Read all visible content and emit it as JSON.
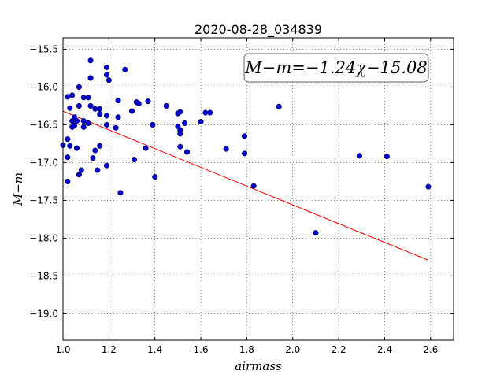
{
  "chart_data": {
    "type": "scatter",
    "title": "2020-08-28_034839",
    "xlabel": "airmass",
    "ylabel": "M−m",
    "xlim": [
      1.0,
      2.7
    ],
    "ylim": [
      -19.35,
      -15.35
    ],
    "y_inverted": false,
    "grid": true,
    "x_ticks": [
      1.0,
      1.2,
      1.4,
      1.6,
      1.8,
      2.0,
      2.2,
      2.4,
      2.6
    ],
    "x_tick_labels": [
      "1.0",
      "1.2",
      "1.4",
      "1.6",
      "1.8",
      "2.0",
      "2.2",
      "2.4",
      "2.6"
    ],
    "y_ticks": [
      -15.5,
      -16.0,
      -16.5,
      -17.0,
      -17.5,
      -18.0,
      -18.5,
      -19.0
    ],
    "y_tick_labels": [
      "−15.5",
      "−16.0",
      "−16.5",
      "−17.0",
      "−17.5",
      "−18.0",
      "−18.5",
      "−19.0"
    ],
    "annotation": "M−m=−1.24χ−15.08",
    "fit": {
      "slope": -1.24,
      "intercept": -15.08,
      "x_range": [
        1.0,
        2.59
      ],
      "color": "#ff0000"
    },
    "point_color": "#0000cc",
    "points": [
      [
        1.12,
        -15.65
      ],
      [
        1.19,
        -15.74
      ],
      [
        1.27,
        -15.77
      ],
      [
        1.19,
        -15.84
      ],
      [
        1.2,
        -15.91
      ],
      [
        1.12,
        -15.88
      ],
      [
        1.07,
        -16.0
      ],
      [
        1.02,
        -16.13
      ],
      [
        1.04,
        -16.11
      ],
      [
        1.09,
        -16.14
      ],
      [
        1.11,
        -16.14
      ],
      [
        1.24,
        -16.18
      ],
      [
        1.32,
        -16.2
      ],
      [
        1.33,
        -16.22
      ],
      [
        1.37,
        -16.19
      ],
      [
        1.07,
        -16.25
      ],
      [
        1.12,
        -16.25
      ],
      [
        1.14,
        -16.29
      ],
      [
        1.16,
        -16.29
      ],
      [
        1.03,
        -16.28
      ],
      [
        1.3,
        -16.32
      ],
      [
        1.16,
        -16.36
      ],
      [
        1.19,
        -16.38
      ],
      [
        1.24,
        -16.4
      ],
      [
        1.45,
        -16.25
      ],
      [
        1.5,
        -16.35
      ],
      [
        1.51,
        -16.33
      ],
      [
        1.62,
        -16.34
      ],
      [
        1.64,
        -16.34
      ],
      [
        1.6,
        -16.46
      ],
      [
        1.53,
        -16.48
      ],
      [
        1.5,
        -16.52
      ],
      [
        1.94,
        -16.26
      ],
      [
        1.05,
        -16.4
      ],
      [
        1.06,
        -16.45
      ],
      [
        1.04,
        -16.45
      ],
      [
        1.09,
        -16.45
      ],
      [
        1.11,
        -16.48
      ],
      [
        1.04,
        -16.53
      ],
      [
        1.05,
        -16.51
      ],
      [
        1.09,
        -16.53
      ],
      [
        1.19,
        -16.5
      ],
      [
        1.23,
        -16.54
      ],
      [
        1.39,
        -16.5
      ],
      [
        1.51,
        -16.57
      ],
      [
        1.51,
        -16.62
      ],
      [
        1.79,
        -16.65
      ],
      [
        1.0,
        -16.77
      ],
      [
        1.02,
        -16.69
      ],
      [
        1.03,
        -16.78
      ],
      [
        1.06,
        -16.81
      ],
      [
        1.16,
        -16.78
      ],
      [
        1.14,
        -16.84
      ],
      [
        1.36,
        -16.81
      ],
      [
        1.51,
        -16.79
      ],
      [
        1.54,
        -16.86
      ],
      [
        1.71,
        -16.82
      ],
      [
        1.79,
        -16.88
      ],
      [
        1.02,
        -16.93
      ],
      [
        1.13,
        -16.94
      ],
      [
        1.31,
        -16.96
      ],
      [
        2.29,
        -16.91
      ],
      [
        2.41,
        -16.92
      ],
      [
        1.08,
        -17.1
      ],
      [
        1.15,
        -17.1
      ],
      [
        1.19,
        -17.04
      ],
      [
        1.07,
        -17.16
      ],
      [
        1.4,
        -17.19
      ],
      [
        1.02,
        -17.25
      ],
      [
        1.83,
        -17.31
      ],
      [
        1.25,
        -17.4
      ],
      [
        2.59,
        -17.32
      ],
      [
        2.1,
        -17.93
      ]
    ]
  }
}
